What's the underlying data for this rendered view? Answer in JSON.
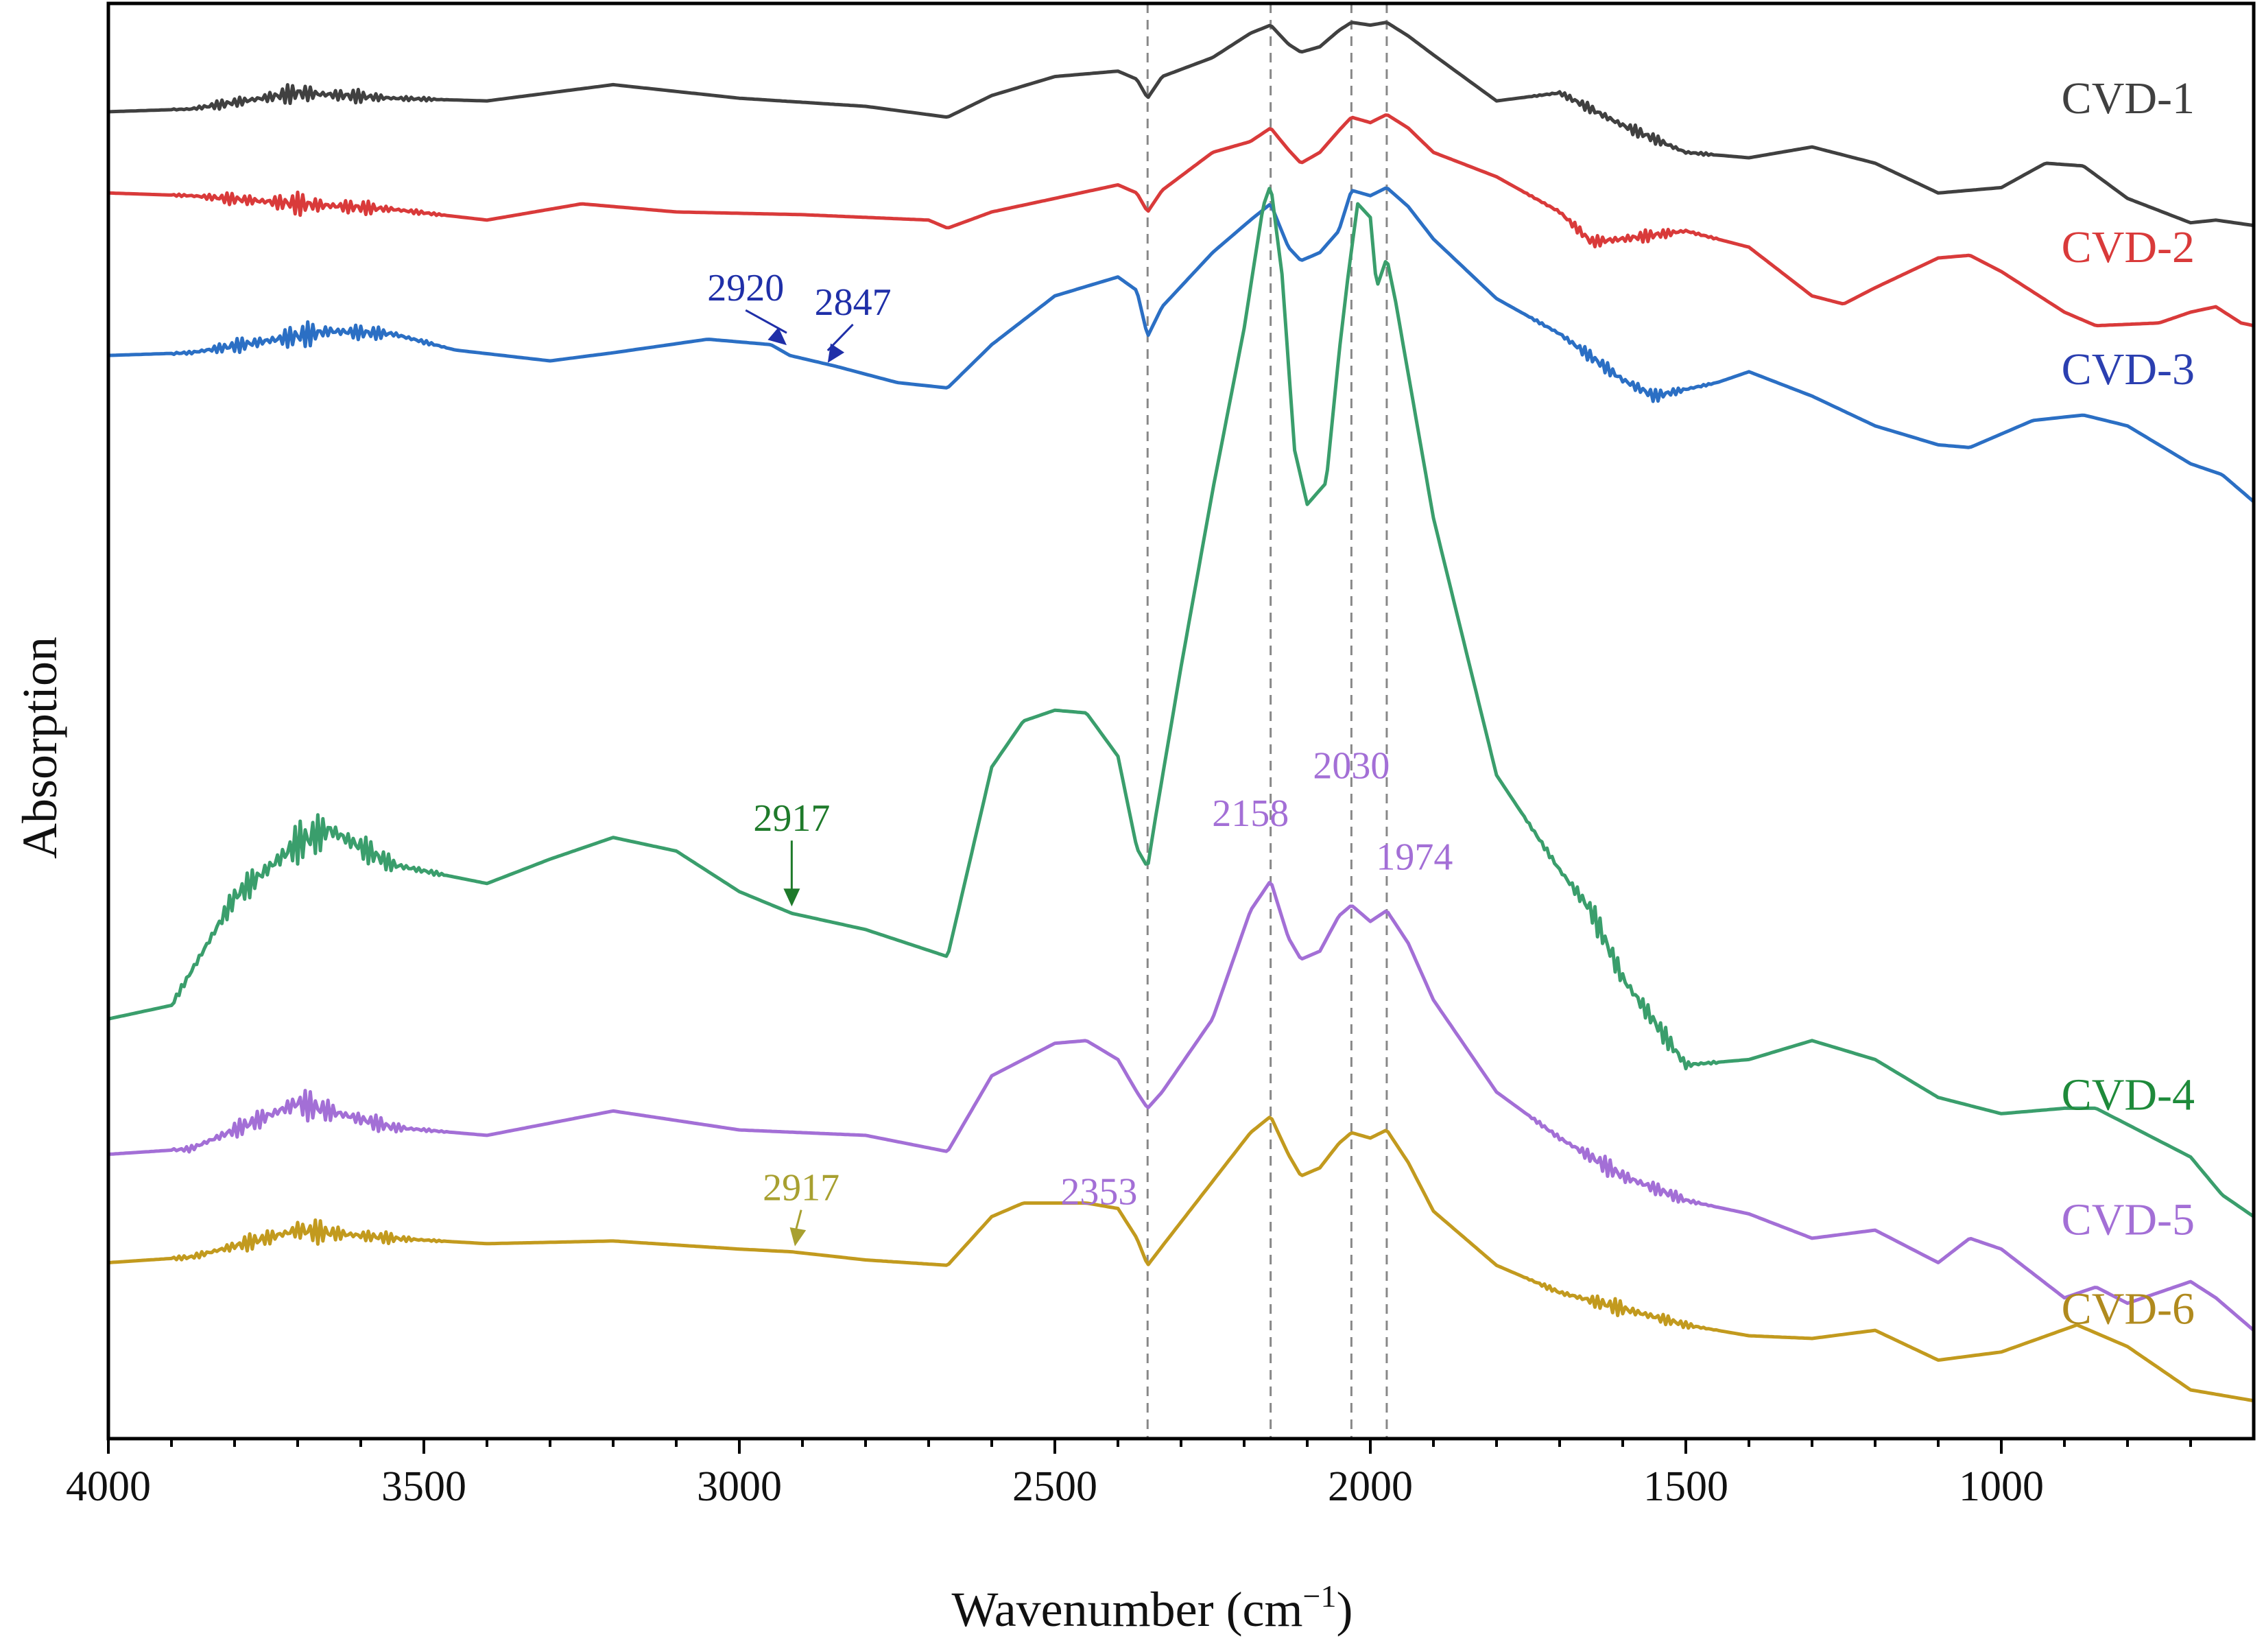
{
  "chart_data": {
    "type": "line",
    "title": "",
    "xlabel": "Wavenumber (cm",
    "xlabel_superscript": "−1",
    "xlabel_suffix": ")",
    "ylabel": "Absorption",
    "xlim": [
      4000,
      600
    ],
    "x_reversed": true,
    "x_ticks": [
      4000,
      3500,
      3000,
      2500,
      2000,
      1500,
      1000
    ],
    "y_ticks_shown": false,
    "reference_lines": [
      2353,
      2158,
      2030,
      1974
    ],
    "series": [
      {
        "name": "CVD-1",
        "color": "#404040",
        "noise": 0.4,
        "points": [
          [
            4000,
            22.0
          ],
          [
            3870,
            22.1
          ],
          [
            3700,
            22.7
          ],
          [
            3550,
            22.5
          ],
          [
            3400,
            22.4
          ],
          [
            3200,
            23.0
          ],
          [
            3000,
            22.5
          ],
          [
            2800,
            22.2
          ],
          [
            2670,
            21.8
          ],
          [
            2600,
            22.6
          ],
          [
            2500,
            23.3
          ],
          [
            2400,
            23.5
          ],
          [
            2370,
            23.2
          ],
          [
            2353,
            22.5
          ],
          [
            2330,
            23.3
          ],
          [
            2250,
            24.0
          ],
          [
            2190,
            24.9
          ],
          [
            2158,
            25.2
          ],
          [
            2130,
            24.5
          ],
          [
            2110,
            24.2
          ],
          [
            2080,
            24.4
          ],
          [
            2050,
            25.0
          ],
          [
            2030,
            25.3
          ],
          [
            2000,
            25.2
          ],
          [
            1974,
            25.3
          ],
          [
            1940,
            24.8
          ],
          [
            1900,
            24.1
          ],
          [
            1800,
            22.4
          ],
          [
            1700,
            22.7
          ],
          [
            1600,
            21.5
          ],
          [
            1500,
            20.5
          ],
          [
            1400,
            20.3
          ],
          [
            1300,
            20.7
          ],
          [
            1200,
            20.1
          ],
          [
            1100,
            19.0
          ],
          [
            1000,
            19.2
          ],
          [
            930,
            20.1
          ],
          [
            870,
            20.0
          ],
          [
            800,
            18.8
          ],
          [
            700,
            17.9
          ],
          [
            660,
            18.0
          ],
          [
            600,
            17.8
          ]
        ]
      },
      {
        "name": "CVD-2",
        "color": "#d93a3a",
        "noise": 0.45,
        "points": [
          [
            4000,
            19.0
          ],
          [
            3870,
            18.9
          ],
          [
            3700,
            18.6
          ],
          [
            3550,
            18.4
          ],
          [
            3400,
            18.0
          ],
          [
            3250,
            18.6
          ],
          [
            3100,
            18.3
          ],
          [
            2900,
            18.2
          ],
          [
            2700,
            18.0
          ],
          [
            2670,
            17.7
          ],
          [
            2600,
            18.3
          ],
          [
            2500,
            18.8
          ],
          [
            2400,
            19.3
          ],
          [
            2370,
            19.0
          ],
          [
            2353,
            18.3
          ],
          [
            2330,
            19.1
          ],
          [
            2250,
            20.5
          ],
          [
            2190,
            20.9
          ],
          [
            2158,
            21.4
          ],
          [
            2130,
            20.6
          ],
          [
            2110,
            20.1
          ],
          [
            2080,
            20.5
          ],
          [
            2050,
            21.3
          ],
          [
            2030,
            21.8
          ],
          [
            2000,
            21.6
          ],
          [
            1974,
            21.9
          ],
          [
            1940,
            21.4
          ],
          [
            1900,
            20.5
          ],
          [
            1800,
            19.6
          ],
          [
            1700,
            18.3
          ],
          [
            1650,
            17.2
          ],
          [
            1600,
            17.3
          ],
          [
            1500,
            17.6
          ],
          [
            1400,
            17.0
          ],
          [
            1300,
            15.2
          ],
          [
            1250,
            14.9
          ],
          [
            1200,
            15.5
          ],
          [
            1100,
            16.6
          ],
          [
            1050,
            16.7
          ],
          [
            1000,
            16.1
          ],
          [
            900,
            14.6
          ],
          [
            850,
            14.1
          ],
          [
            750,
            14.2
          ],
          [
            700,
            14.6
          ],
          [
            660,
            14.8
          ],
          [
            620,
            14.2
          ],
          [
            600,
            14.1
          ]
        ]
      },
      {
        "name": "CVD-3",
        "color": "#2b6fc4",
        "noise": 0.5,
        "points": [
          [
            4000,
            13.0
          ],
          [
            3870,
            13.1
          ],
          [
            3650,
            13.9
          ],
          [
            3550,
            13.8
          ],
          [
            3450,
            13.2
          ],
          [
            3300,
            12.8
          ],
          [
            3200,
            13.1
          ],
          [
            3050,
            13.6
          ],
          [
            2950,
            13.4
          ],
          [
            2920,
            13.0
          ],
          [
            2847,
            12.6
          ],
          [
            2750,
            12.0
          ],
          [
            2670,
            11.8
          ],
          [
            2600,
            13.4
          ],
          [
            2500,
            15.2
          ],
          [
            2400,
            15.9
          ],
          [
            2370,
            15.4
          ],
          [
            2353,
            13.7
          ],
          [
            2330,
            14.8
          ],
          [
            2250,
            16.8
          ],
          [
            2190,
            18.0
          ],
          [
            2158,
            18.6
          ],
          [
            2130,
            17.0
          ],
          [
            2110,
            16.5
          ],
          [
            2080,
            16.8
          ],
          [
            2050,
            17.6
          ],
          [
            2030,
            19.1
          ],
          [
            2000,
            18.9
          ],
          [
            1974,
            19.2
          ],
          [
            1940,
            18.5
          ],
          [
            1900,
            17.3
          ],
          [
            1800,
            15.1
          ],
          [
            1700,
            13.8
          ],
          [
            1600,
            12.1
          ],
          [
            1550,
            11.5
          ],
          [
            1450,
            12.0
          ],
          [
            1400,
            12.4
          ],
          [
            1300,
            11.5
          ],
          [
            1200,
            10.4
          ],
          [
            1100,
            9.7
          ],
          [
            1050,
            9.6
          ],
          [
            950,
            10.6
          ],
          [
            870,
            10.8
          ],
          [
            800,
            10.4
          ],
          [
            700,
            9.0
          ],
          [
            650,
            8.6
          ],
          [
            600,
            7.6
          ]
        ]
      },
      {
        "name": "CVD-4",
        "color": "#3a9e6c",
        "noise": 0.9,
        "points": [
          [
            4000,
            -11.5
          ],
          [
            3900,
            -11.0
          ],
          [
            3800,
            -7.0
          ],
          [
            3700,
            -5.0
          ],
          [
            3650,
            -4.5
          ],
          [
            3550,
            -5.8
          ],
          [
            3400,
            -6.5
          ],
          [
            3300,
            -5.6
          ],
          [
            3200,
            -4.8
          ],
          [
            3100,
            -5.3
          ],
          [
            3000,
            -6.8
          ],
          [
            2917,
            -7.6
          ],
          [
            2800,
            -8.2
          ],
          [
            2670,
            -9.2
          ],
          [
            2600,
            -2.2
          ],
          [
            2550,
            -0.5
          ],
          [
            2500,
            -0.1
          ],
          [
            2450,
            -0.2
          ],
          [
            2400,
            -1.8
          ],
          [
            2370,
            -5.2
          ],
          [
            2353,
            -5.9
          ],
          [
            2340,
            -4.0
          ],
          [
            2300,
            1.5
          ],
          [
            2250,
            8.0
          ],
          [
            2200,
            14.0
          ],
          [
            2170,
            18.5
          ],
          [
            2158,
            19.3
          ],
          [
            2140,
            16.0
          ],
          [
            2120,
            9.5
          ],
          [
            2100,
            7.5
          ],
          [
            2070,
            8.3
          ],
          [
            2050,
            13.0
          ],
          [
            2035,
            16.0
          ],
          [
            2020,
            18.6
          ],
          [
            2000,
            18.1
          ],
          [
            1990,
            15.5
          ],
          [
            1974,
            16.6
          ],
          [
            1960,
            15.0
          ],
          [
            1900,
            7.0
          ],
          [
            1800,
            -2.5
          ],
          [
            1700,
            -6.0
          ],
          [
            1650,
            -7.5
          ],
          [
            1600,
            -10.0
          ],
          [
            1500,
            -13.2
          ],
          [
            1400,
            -13.0
          ],
          [
            1300,
            -12.3
          ],
          [
            1200,
            -13.0
          ],
          [
            1100,
            -14.4
          ],
          [
            1000,
            -15.0
          ],
          [
            900,
            -14.8
          ],
          [
            850,
            -14.8
          ],
          [
            700,
            -16.6
          ],
          [
            650,
            -18.0
          ],
          [
            600,
            -18.8
          ]
        ]
      },
      {
        "name": "CVD-5",
        "color": "#a36fd6",
        "noise": 0.6,
        "points": [
          [
            4000,
            -16.5
          ],
          [
            3870,
            -16.3
          ],
          [
            3700,
            -14.6
          ],
          [
            3550,
            -15.5
          ],
          [
            3400,
            -15.8
          ],
          [
            3200,
            -14.9
          ],
          [
            3000,
            -15.6
          ],
          [
            2800,
            -15.8
          ],
          [
            2670,
            -16.4
          ],
          [
            2600,
            -13.6
          ],
          [
            2500,
            -12.4
          ],
          [
            2450,
            -12.3
          ],
          [
            2400,
            -13.0
          ],
          [
            2370,
            -14.2
          ],
          [
            2353,
            -14.8
          ],
          [
            2330,
            -14.2
          ],
          [
            2250,
            -11.5
          ],
          [
            2190,
            -7.5
          ],
          [
            2158,
            -6.4
          ],
          [
            2130,
            -8.5
          ],
          [
            2110,
            -9.3
          ],
          [
            2080,
            -9.0
          ],
          [
            2050,
            -7.7
          ],
          [
            2030,
            -7.3
          ],
          [
            2000,
            -7.9
          ],
          [
            1974,
            -7.5
          ],
          [
            1940,
            -8.7
          ],
          [
            1900,
            -10.8
          ],
          [
            1800,
            -14.2
          ],
          [
            1700,
            -15.9
          ],
          [
            1600,
            -17.3
          ],
          [
            1500,
            -18.2
          ],
          [
            1400,
            -18.7
          ],
          [
            1300,
            -19.6
          ],
          [
            1200,
            -19.3
          ],
          [
            1100,
            -20.5
          ],
          [
            1050,
            -19.6
          ],
          [
            1000,
            -20.0
          ],
          [
            900,
            -21.8
          ],
          [
            850,
            -21.4
          ],
          [
            800,
            -22.0
          ],
          [
            700,
            -21.2
          ],
          [
            660,
            -21.8
          ],
          [
            600,
            -23.0
          ]
        ]
      },
      {
        "name": "CVD-6",
        "color": "#c29a1e",
        "noise": 0.5,
        "points": [
          [
            4000,
            -20.5
          ],
          [
            3870,
            -20.3
          ],
          [
            3700,
            -19.3
          ],
          [
            3550,
            -19.6
          ],
          [
            3400,
            -19.8
          ],
          [
            3200,
            -19.7
          ],
          [
            3000,
            -20.0
          ],
          [
            2917,
            -20.1
          ],
          [
            2800,
            -20.4
          ],
          [
            2670,
            -20.6
          ],
          [
            2600,
            -18.8
          ],
          [
            2550,
            -18.3
          ],
          [
            2450,
            -18.3
          ],
          [
            2400,
            -18.5
          ],
          [
            2370,
            -19.6
          ],
          [
            2353,
            -20.6
          ],
          [
            2330,
            -19.9
          ],
          [
            2250,
            -17.5
          ],
          [
            2190,
            -15.7
          ],
          [
            2158,
            -15.1
          ],
          [
            2130,
            -16.5
          ],
          [
            2110,
            -17.3
          ],
          [
            2080,
            -17.0
          ],
          [
            2050,
            -16.1
          ],
          [
            2030,
            -15.7
          ],
          [
            2000,
            -15.9
          ],
          [
            1974,
            -15.6
          ],
          [
            1940,
            -16.8
          ],
          [
            1900,
            -18.6
          ],
          [
            1800,
            -20.6
          ],
          [
            1700,
            -21.6
          ],
          [
            1600,
            -22.2
          ],
          [
            1500,
            -22.8
          ],
          [
            1400,
            -23.2
          ],
          [
            1300,
            -23.3
          ],
          [
            1200,
            -23.0
          ],
          [
            1100,
            -24.1
          ],
          [
            1000,
            -23.8
          ],
          [
            880,
            -22.8
          ],
          [
            800,
            -23.6
          ],
          [
            700,
            -25.2
          ],
          [
            650,
            -25.4
          ],
          [
            600,
            -25.6
          ]
        ]
      }
    ],
    "series_labels": [
      {
        "text": "CVD-1",
        "color": "#404040"
      },
      {
        "text": "CVD-2",
        "color": "#d93a3a"
      },
      {
        "text": "CVD-3",
        "color": "#2b3fb0"
      },
      {
        "text": "CVD-4",
        "color": "#1e8a3a"
      },
      {
        "text": "CVD-5",
        "color": "#a36fd6"
      },
      {
        "text": "CVD-6",
        "color": "#b08a1e"
      }
    ],
    "annotations": [
      {
        "text": "2920",
        "color": "#1f2fa8",
        "wavenumber": 2920,
        "series": "CVD-3",
        "arrow": true
      },
      {
        "text": "2847",
        "color": "#1f2fa8",
        "wavenumber": 2847,
        "series": "CVD-3",
        "arrow": true
      },
      {
        "text": "2917",
        "color": "#1e7a2a",
        "wavenumber": 2917,
        "series": "CVD-4",
        "arrow": true
      },
      {
        "text": "2917",
        "color": "#a8a030",
        "wavenumber": 2917,
        "series": "CVD-6",
        "arrow": true
      },
      {
        "text": "2158",
        "color": "#a36fd6",
        "wavenumber": 2158,
        "series": "CVD-5",
        "arrow": false
      },
      {
        "text": "2030",
        "color": "#a36fd6",
        "wavenumber": 2030,
        "series": "CVD-5",
        "arrow": false
      },
      {
        "text": "1974",
        "color": "#a36fd6",
        "wavenumber": 1974,
        "series": "CVD-5",
        "arrow": false
      },
      {
        "text": "2353",
        "color": "#a36fd6",
        "wavenumber": 2353,
        "series": "CVD-5",
        "arrow": false
      }
    ]
  }
}
